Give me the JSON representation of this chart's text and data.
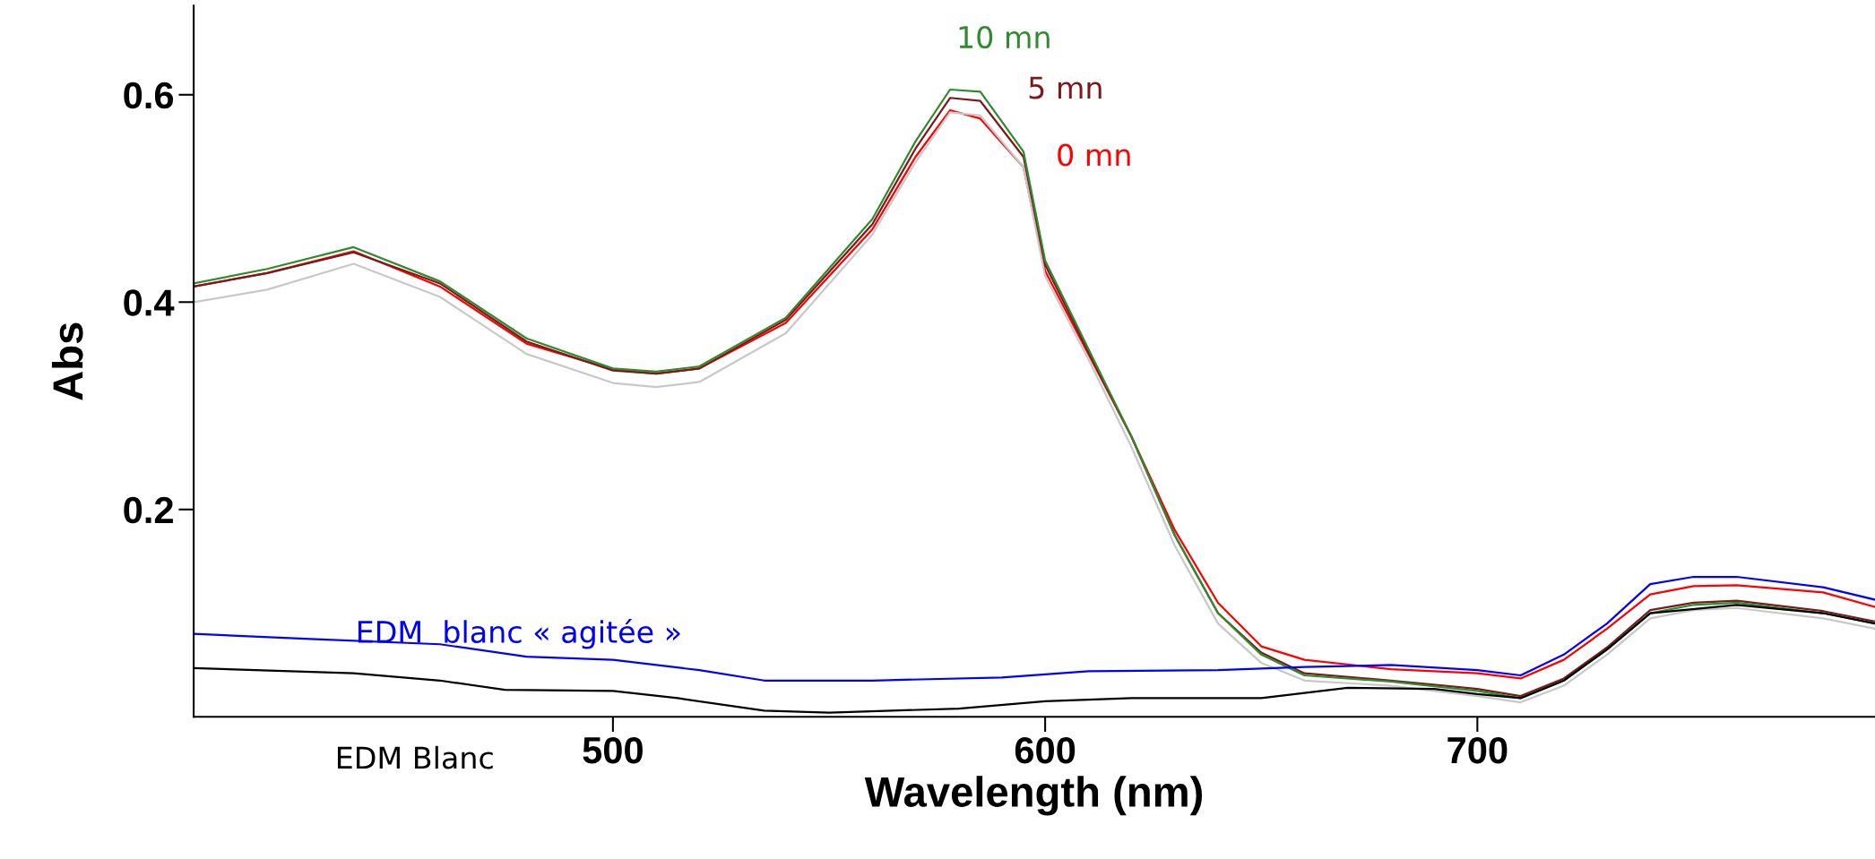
{
  "chart_data": {
    "type": "line",
    "xlabel": "Wavelength (nm)",
    "ylabel": "Abs",
    "xlim": [
      403,
      792
    ],
    "ylim": [
      0,
      0.686
    ],
    "xticks": [
      500,
      600,
      700
    ],
    "yticks": [
      0.2,
      0.4,
      0.6
    ],
    "grid": false,
    "legend": false,
    "marker": "none",
    "line_style": "solid",
    "x": [
      403,
      420,
      440,
      460,
      480,
      500,
      510,
      520,
      540,
      560,
      570,
      578,
      585,
      595,
      600,
      610,
      620,
      630,
      640,
      650,
      660,
      680,
      700,
      710,
      720,
      730,
      740,
      750,
      760,
      780,
      792
    ],
    "series": [
      {
        "name": "0 mn",
        "color": "#ff0000",
        "values": [
          0.415,
          0.428,
          0.449,
          0.415,
          0.36,
          0.335,
          0.331,
          0.336,
          0.38,
          0.47,
          0.54,
          0.585,
          0.577,
          0.53,
          0.43,
          0.35,
          0.27,
          0.18,
          0.11,
          0.068,
          0.055,
          0.046,
          0.042,
          0.037,
          0.055,
          0.085,
          0.118,
          0.126,
          0.127,
          0.12,
          0.106
        ]
      },
      {
        "name": "5 mn",
        "color": "#7a1a1a",
        "values": [
          0.415,
          0.428,
          0.448,
          0.418,
          0.362,
          0.334,
          0.331,
          0.336,
          0.383,
          0.475,
          0.548,
          0.597,
          0.594,
          0.54,
          0.436,
          0.352,
          0.27,
          0.175,
          0.1,
          0.062,
          0.042,
          0.035,
          0.027,
          0.02,
          0.037,
          0.067,
          0.103,
          0.11,
          0.112,
          0.102,
          0.092
        ]
      },
      {
        "name": "10 mn",
        "color": "#2e8b2e",
        "values": [
          0.418,
          0.432,
          0.453,
          0.42,
          0.365,
          0.336,
          0.333,
          0.338,
          0.385,
          0.48,
          0.555,
          0.605,
          0.603,
          0.545,
          0.44,
          0.355,
          0.27,
          0.175,
          0.1,
          0.06,
          0.04,
          0.034,
          0.025,
          0.018,
          0.035,
          0.065,
          0.1,
          0.108,
          0.11,
          0.1,
          0.09
        ]
      },
      {
        "color": "#c8c8c8",
        "values": [
          0.4,
          0.412,
          0.437,
          0.405,
          0.35,
          0.322,
          0.318,
          0.323,
          0.37,
          0.465,
          0.535,
          0.583,
          0.58,
          0.53,
          0.425,
          0.345,
          0.26,
          0.165,
          0.09,
          0.052,
          0.035,
          0.03,
          0.02,
          0.014,
          0.03,
          0.06,
          0.095,
          0.103,
          0.105,
          0.095,
          0.085
        ]
      },
      {
        "name": "EDM  blanc « agitée »",
        "color": "#0000ff",
        "x": [
          403,
          430,
          460,
          480,
          500,
          520,
          535,
          560,
          590,
          610,
          640,
          660,
          680,
          700,
          710,
          720,
          730,
          740,
          750,
          760,
          780,
          792
        ],
        "values": [
          0.08,
          0.075,
          0.07,
          0.058,
          0.055,
          0.045,
          0.035,
          0.035,
          0.038,
          0.044,
          0.045,
          0.048,
          0.05,
          0.045,
          0.04,
          0.06,
          0.09,
          0.128,
          0.135,
          0.135,
          0.125,
          0.113
        ]
      },
      {
        "name": "EDM Blanc",
        "color": "#000000",
        "x": [
          403,
          440,
          460,
          475,
          500,
          515,
          535,
          550,
          580,
          600,
          620,
          650,
          670,
          690,
          700,
          710,
          720,
          730,
          740,
          760,
          780,
          792
        ],
        "values": [
          0.047,
          0.042,
          0.035,
          0.026,
          0.025,
          0.018,
          0.006,
          0.004,
          0.008,
          0.015,
          0.018,
          0.018,
          0.028,
          0.027,
          0.022,
          0.018,
          0.035,
          0.065,
          0.1,
          0.108,
          0.1,
          0.09
        ]
      }
    ]
  }
}
